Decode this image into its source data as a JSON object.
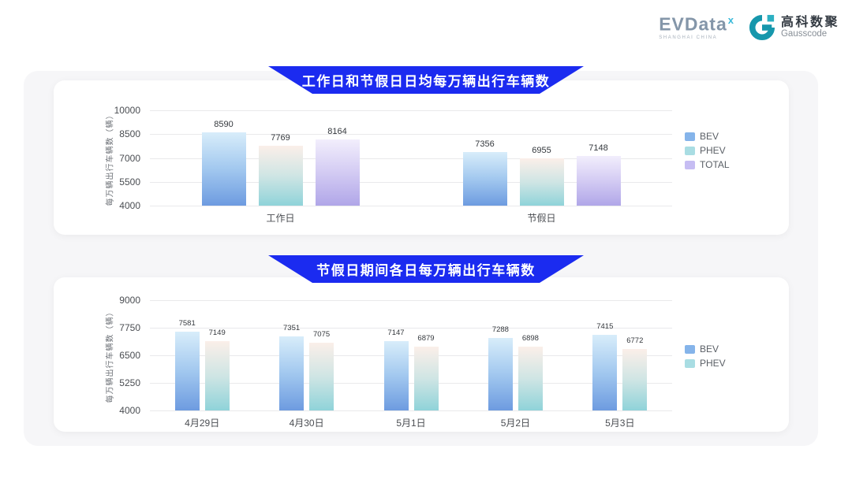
{
  "header": {
    "evdata": {
      "name": "EVData",
      "superscript": "x",
      "tagline": "SHANGHAI CHINA"
    },
    "gausscode": {
      "cn_name": "高科数聚",
      "en_name": "Gausscode"
    }
  },
  "colors": {
    "banner_blue": "#1b2bf0",
    "gausscode_teal": "#1697ac",
    "gausscode_teal_light": "#2cb0c2",
    "series_gradients": {
      "BEV": [
        "#d8edfa",
        "#a2c8ef",
        "#6d9be0"
      ],
      "PHEV": [
        "#fbefe9",
        "#cfe5e4",
        "#8fd3d9"
      ],
      "TOTAL": [
        "#f2eefc",
        "#d3cbf3",
        "#b0a6e8"
      ]
    },
    "legend_colors": {
      "BEV": "#85b4ea",
      "PHEV": "#a9dde3",
      "TOTAL": "#c6bdf3"
    }
  },
  "chart_data": [
    {
      "type": "bar",
      "title": "工作日和节假日日均每万辆出行车辆数",
      "categories": [
        "工作日",
        "节假日"
      ],
      "series": [
        {
          "name": "BEV",
          "values": [
            8590,
            7356
          ]
        },
        {
          "name": "PHEV",
          "values": [
            7769,
            6955
          ]
        },
        {
          "name": "TOTAL",
          "values": [
            8164,
            7148
          ]
        }
      ],
      "xlabel": "",
      "ylabel": "每万辆出行车辆数（辆）",
      "ylim": [
        4000,
        10000
      ],
      "yticks": [
        4000,
        5500,
        7000,
        8500,
        10000
      ],
      "grid": true,
      "legend_position": "right"
    },
    {
      "type": "bar",
      "title": "节假日期间各日每万辆出行车辆数",
      "categories": [
        "4月29日",
        "4月30日",
        "5月1日",
        "5月2日",
        "5月3日"
      ],
      "series": [
        {
          "name": "BEV",
          "values": [
            7581,
            7351,
            7147,
            7288,
            7415
          ]
        },
        {
          "name": "PHEV",
          "values": [
            7149,
            7075,
            6879,
            6898,
            6772
          ]
        }
      ],
      "xlabel": "",
      "ylabel": "每万辆出行车辆数（辆）",
      "ylim": [
        4000,
        9000
      ],
      "yticks": [
        4000,
        5250,
        6500,
        7750,
        9000
      ],
      "grid": true,
      "legend_position": "right"
    }
  ]
}
